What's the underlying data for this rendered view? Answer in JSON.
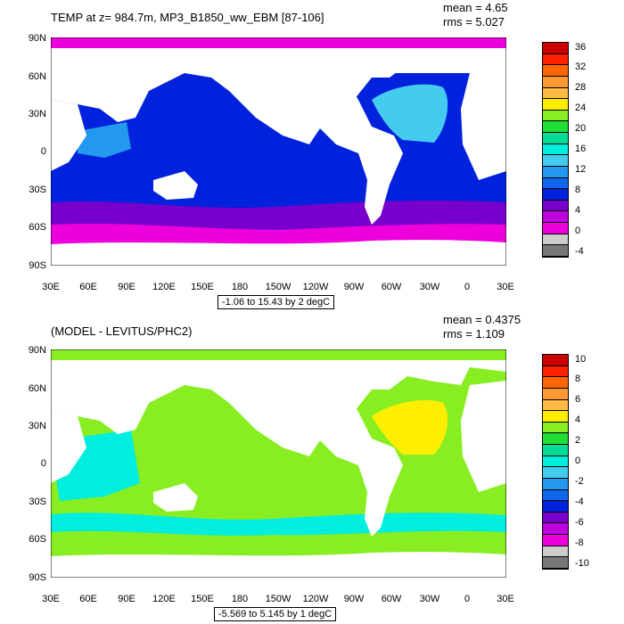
{
  "panels": [
    {
      "title": "TEMP at z= 984.7m, MP3_B1850_ww_EBM [87-106]",
      "mean": "mean = 4.65",
      "rms": "rms = 5.027",
      "range": "-1.06 to 15.43 by 2 degC",
      "lat_labels": [
        "90N",
        "60N",
        "30N",
        "0",
        "30S",
        "60S",
        "90S"
      ],
      "lon_labels": [
        "30E",
        "60E",
        "90E",
        "120E",
        "150E",
        "180",
        "150W",
        "120W",
        "90W",
        "60W",
        "30W",
        "0",
        "30E"
      ],
      "colorbar_labels": [
        "36",
        "32",
        "28",
        "24",
        "20",
        "16",
        "12",
        "8",
        "4",
        "0",
        "-4"
      ],
      "colors": [
        "#cc0000",
        "#ff2200",
        "#ff6600",
        "#ff9933",
        "#ffbb44",
        "#ffee00",
        "#88ee22",
        "#22dd33",
        "#00dd99",
        "#00eedd",
        "#44ccee",
        "#2299ee",
        "#1166ee",
        "#0022dd",
        "#7700cc",
        "#bb00dd",
        "#ee00dd",
        "#cccccc",
        "#777777"
      ]
    },
    {
      "title": "(MODEL - LEVITUS/PHC2)",
      "mean": "mean = 0.4375",
      "rms": "rms = 1.109",
      "range": "-5.569 to 5.145 by 1 degC",
      "lat_labels": [
        "90N",
        "60N",
        "30N",
        "0",
        "30S",
        "60S",
        "90S"
      ],
      "lon_labels": [
        "30E",
        "60E",
        "90E",
        "120E",
        "150E",
        "180",
        "150W",
        "120W",
        "90W",
        "60W",
        "30W",
        "0",
        "30E"
      ],
      "colorbar_labels": [
        "10",
        "8",
        "6",
        "4",
        "2",
        "0",
        "-2",
        "-4",
        "-6",
        "-8",
        "-10"
      ],
      "colors": [
        "#cc0000",
        "#ff2200",
        "#ff6600",
        "#ff9933",
        "#ffbb44",
        "#ffee00",
        "#88ee22",
        "#22dd33",
        "#00dd99",
        "#00eedd",
        "#44ccee",
        "#2299ee",
        "#1166ee",
        "#0022dd",
        "#7700cc",
        "#bb00dd",
        "#ee00dd",
        "#cccccc",
        "#777777"
      ]
    }
  ],
  "map_fill": {
    "top": {
      "north": "#ee00dd",
      "ocean": "#0022dd",
      "south1": "#7700cc",
      "south2": "#ee00dd",
      "atlantic": "#44ccee",
      "indian": "#2299ee",
      "land": "#ffffff"
    },
    "bottom": {
      "ocean": "#88ee22",
      "south": "#00eedd",
      "atlantic": "#ffee00",
      "indian": "#00eedd",
      "land": "#ffffff"
    }
  }
}
